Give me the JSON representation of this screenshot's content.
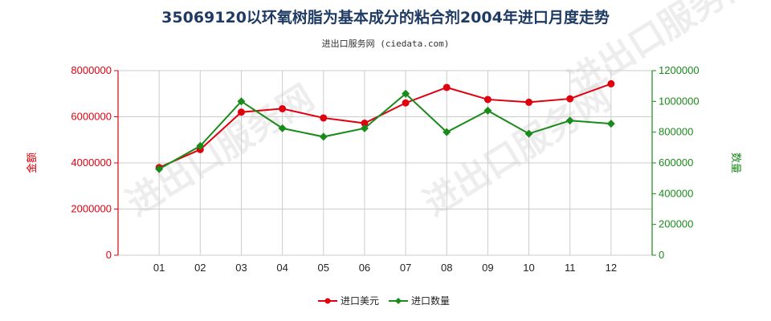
{
  "chart_data": {
    "type": "line",
    "title": "35069120以环氧树脂为基本成分的粘合剂2004年进口月度走势",
    "subtitle": "进出口服务网 (ciedata.com)",
    "categories": [
      "01",
      "02",
      "03",
      "04",
      "05",
      "06",
      "07",
      "08",
      "09",
      "10",
      "11",
      "12"
    ],
    "y_left": {
      "label": "金额",
      "ylim": [
        0,
        8000000
      ],
      "ticks": [
        "0",
        "2000000",
        "4000000",
        "6000000",
        "8000000"
      ],
      "color": "#e0000e"
    },
    "y_right": {
      "label": "数量",
      "ylim": [
        0,
        1200000
      ],
      "ticks": [
        "0",
        "200000",
        "400000",
        "600000",
        "800000",
        "1000000",
        "1200000"
      ],
      "color": "#1a8a1a"
    },
    "series": [
      {
        "name": "进口美元",
        "axis": "left",
        "color": "#e0000e",
        "marker": "circle",
        "values": [
          3800000,
          4580000,
          6200000,
          6350000,
          5950000,
          5720000,
          6600000,
          7270000,
          6750000,
          6630000,
          6780000,
          7430000
        ]
      },
      {
        "name": "进口数量",
        "axis": "right",
        "color": "#1a8a1a",
        "marker": "diamond",
        "values": [
          560000,
          710000,
          1000000,
          825000,
          770000,
          825000,
          1050000,
          800000,
          940000,
          790000,
          875000,
          855000
        ]
      }
    ],
    "grid": true,
    "legend": "bottom-center",
    "watermark": "进出口服务网"
  }
}
